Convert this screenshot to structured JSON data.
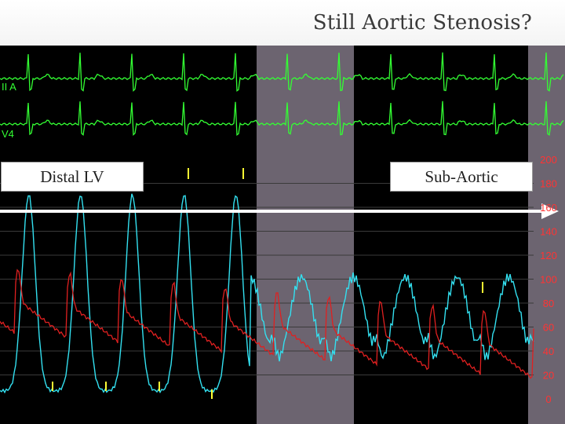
{
  "title": "Still Aortic Stenosis?",
  "labels": {
    "distal": "Distal LV",
    "subaortic": "Sub-Aortic"
  },
  "leads": {
    "lead1": "II A",
    "lead2": "V4"
  },
  "scale": [
    "200",
    "180",
    "160",
    "140",
    "120",
    "100",
    "80",
    "60",
    "40",
    "20",
    "0"
  ],
  "colors": {
    "monitor_bg": "#000000",
    "ecg": "#33ff33",
    "lv_pressure": "#33e0f0",
    "aortic_pressure": "#e02020",
    "markers": "#ffff33",
    "scale": "#ff3333",
    "highlight": "#6c6470"
  }
}
